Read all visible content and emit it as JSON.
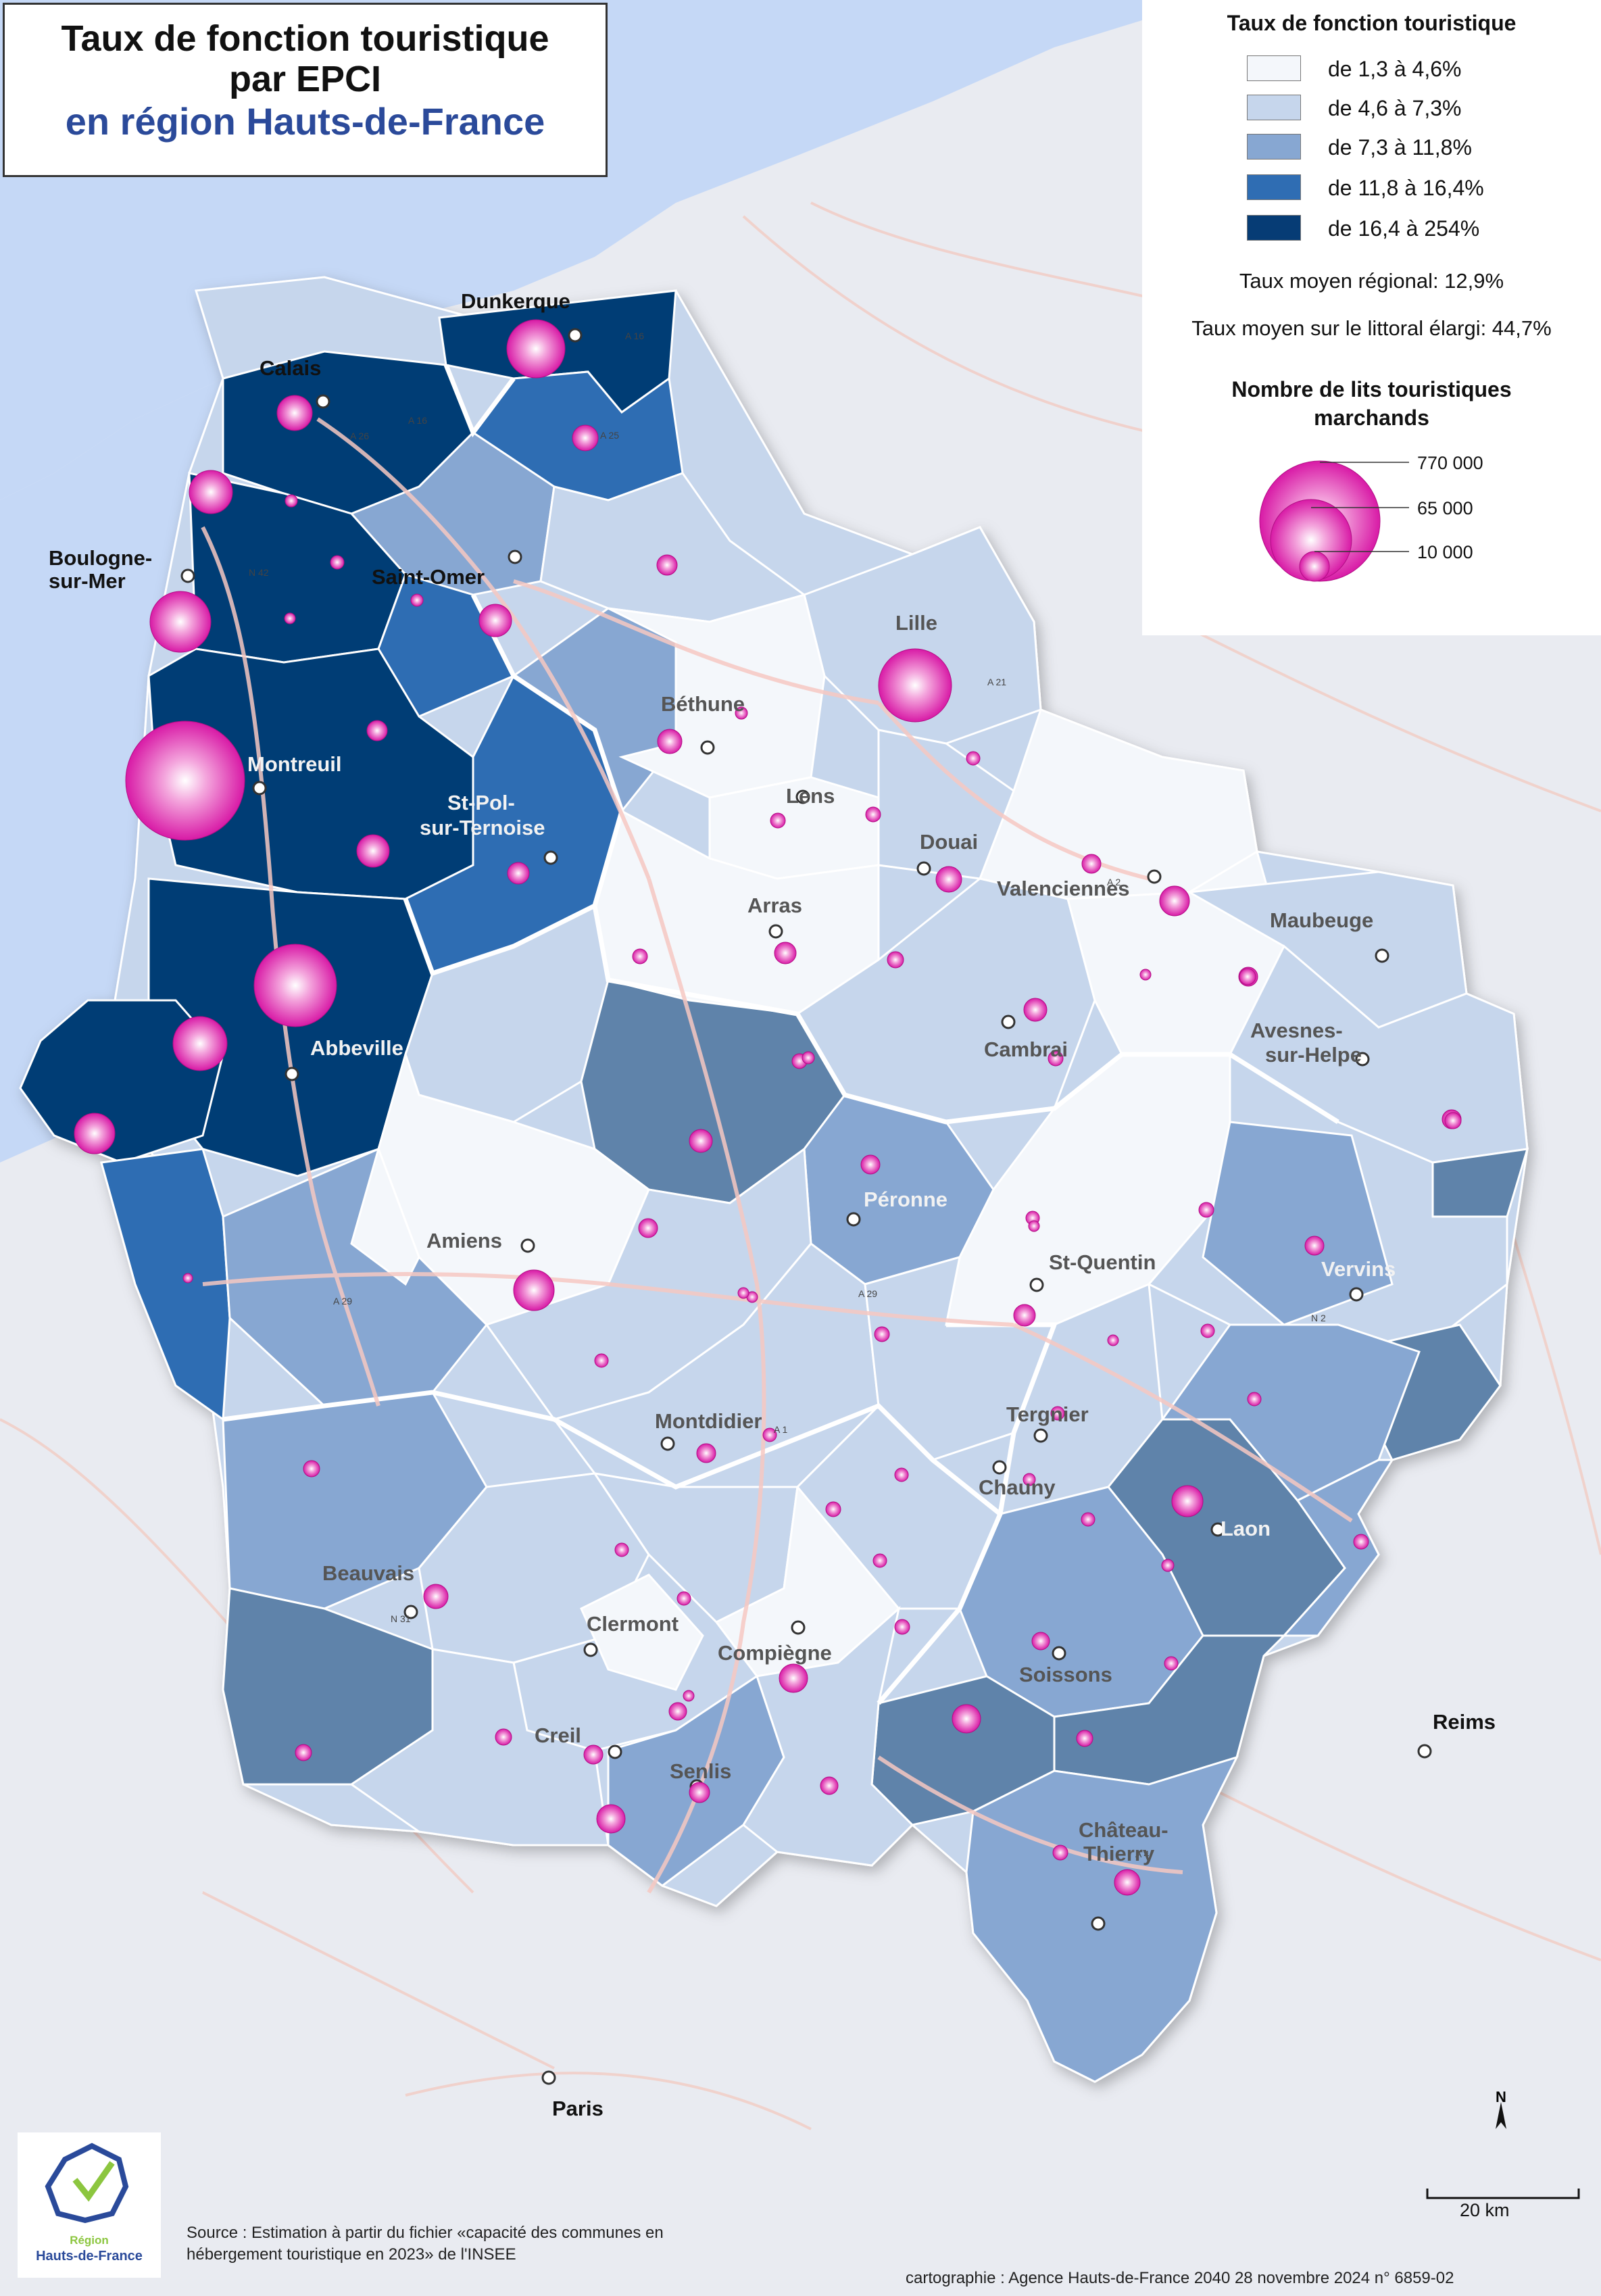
{
  "title": {
    "line1": "Taux de fonction touristique",
    "line2": "par EPCI",
    "line3": "en région Hauts-de-France"
  },
  "legend": {
    "title": "Taux de fonction touristique",
    "classes": [
      {
        "label": "de 1,3 à 4,6%",
        "color": "#f4f7fb"
      },
      {
        "label": "de 4,6 à 7,3%",
        "color": "#c6d6ec"
      },
      {
        "label": "de 7,3 à 11,8%",
        "color": "#87a7d2"
      },
      {
        "label": "de 11,8 à 16,4%",
        "color": "#2f6db3"
      },
      {
        "label": "de 16,4 à 254%",
        "color": "#063c75"
      }
    ],
    "avg_regional": "Taux moyen régional: 12,9%",
    "avg_littoral": "Taux moyen sur le littoral élargi: 44,7%",
    "bubbles_title_1": "Nombre de lits touristiques",
    "bubbles_title_2": "marchands",
    "bubble_values": [
      "770 000",
      "65 000",
      "10 000"
    ]
  },
  "map": {
    "sea_color": "#c5d8f6",
    "bubble_color": "#e22ab4",
    "cities": [
      {
        "name": "Dunkerque",
        "style": "dark"
      },
      {
        "name": "Calais",
        "style": "dark"
      },
      {
        "name": "Boulogne-",
        "style": "dark"
      },
      {
        "name": "sur-Mer",
        "style": "dark"
      },
      {
        "name": "Saint-Omer",
        "style": "dark"
      },
      {
        "name": "Lille",
        "style": "grey"
      },
      {
        "name": "Béthune",
        "style": "grey"
      },
      {
        "name": "Lens",
        "style": "grey"
      },
      {
        "name": "Montreuil",
        "style": "light"
      },
      {
        "name": "St-Pol-",
        "style": "light"
      },
      {
        "name": "sur-Ternoise",
        "style": "light"
      },
      {
        "name": "Douai",
        "style": "grey"
      },
      {
        "name": "Valenciennes",
        "style": "grey"
      },
      {
        "name": "Arras",
        "style": "grey"
      },
      {
        "name": "Maubeuge",
        "style": "grey"
      },
      {
        "name": "Cambrai",
        "style": "grey"
      },
      {
        "name": "Avesnes-",
        "style": "grey"
      },
      {
        "name": "sur-Helpe",
        "style": "grey"
      },
      {
        "name": "Abbeville",
        "style": "light"
      },
      {
        "name": "Péronne",
        "style": "light"
      },
      {
        "name": "Amiens",
        "style": "grey"
      },
      {
        "name": "St-Quentin",
        "style": "grey"
      },
      {
        "name": "Vervins",
        "style": "light"
      },
      {
        "name": "Montdidier",
        "style": "grey"
      },
      {
        "name": "Tergnier",
        "style": "grey"
      },
      {
        "name": "Chauny",
        "style": "grey"
      },
      {
        "name": "Laon",
        "style": "light"
      },
      {
        "name": "Beauvais",
        "style": "grey"
      },
      {
        "name": "Clermont",
        "style": "grey"
      },
      {
        "name": "Compiègne",
        "style": "grey"
      },
      {
        "name": "Soissons",
        "style": "grey"
      },
      {
        "name": "Creil",
        "style": "grey"
      },
      {
        "name": "Senlis",
        "style": "grey"
      },
      {
        "name": "Château-",
        "style": "grey"
      },
      {
        "name": "Thierry",
        "style": "grey"
      },
      {
        "name": "Reims",
        "style": "dark"
      },
      {
        "name": "Paris",
        "style": "dark"
      }
    ],
    "roads": [
      "A 16",
      "A 26",
      "A 25",
      "A 21",
      "A 1",
      "A 29",
      "A 2",
      "N 42",
      "N 31",
      "A 4",
      "N 2"
    ]
  },
  "scale": {
    "label": "20 km",
    "north": "N"
  },
  "logo": {
    "line1": "Région",
    "line2": "Hauts-de-France"
  },
  "source": {
    "line1": "Source : Estimation à partir du fichier «capacité des communes en",
    "line2": "hébergement touristique en 2023» de l'INSEE"
  },
  "credit": "cartographie : Agence Hauts-de-France 2040  28 novembre 2024   n° 6859-02"
}
